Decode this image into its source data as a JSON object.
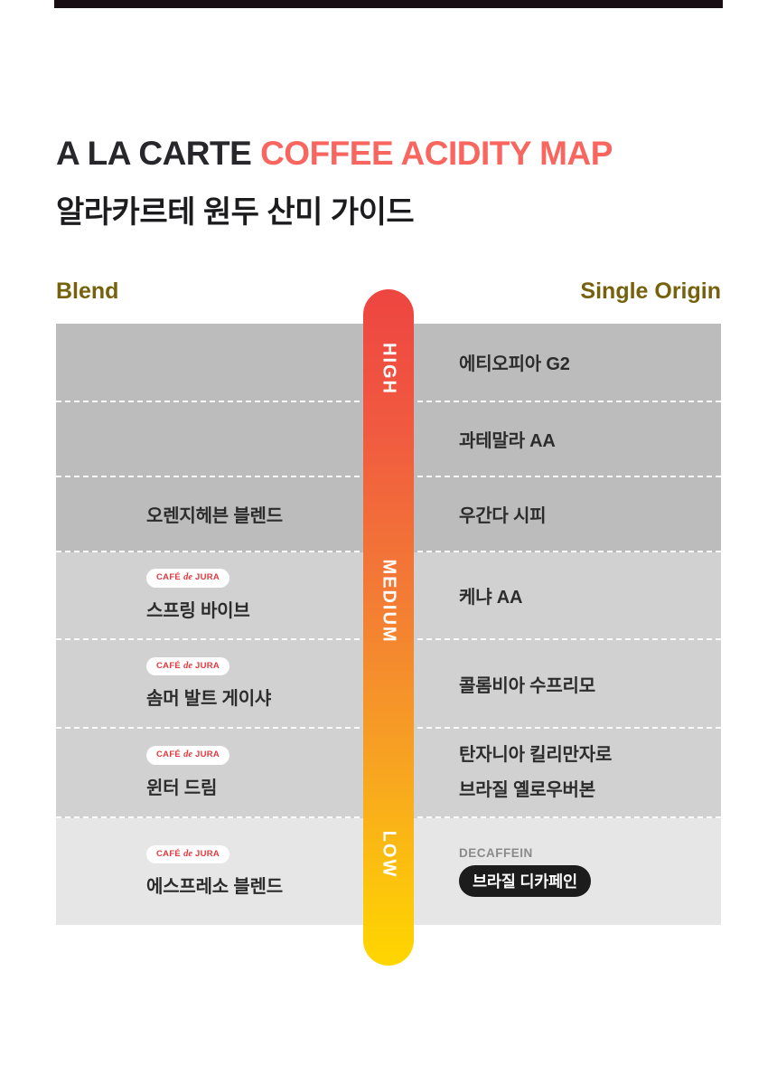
{
  "header": {
    "title_prefix": "A LA CARTE ",
    "title_highlight": "COFFEE ACIDITY MAP",
    "subtitle": "알라카르테 원두 산미 가이드",
    "highlight_color": "#f9655f",
    "title_color": "#26262b"
  },
  "columns": {
    "left_label": "Blend",
    "right_label": "Single Origin",
    "label_color": "#76610d"
  },
  "acidity_bar": {
    "labels": {
      "high": "HIGH",
      "medium": "MEDIUM",
      "low": "LOW"
    },
    "gradient_top_color": "#ee4541",
    "gradient_middle_color": "#f37b35",
    "gradient_bottom_color": "#ffd600"
  },
  "brand_badge": {
    "cafe": "CAFÉ",
    "de": "de",
    "jura": "JURA",
    "text_color": "#e03a3e",
    "background_color": "#ffffff"
  },
  "band_colors": {
    "high_rows": "#bcbcbc",
    "medium_rows": "#d1d1d1",
    "low_row": "#e6e6e6"
  },
  "top_bar_color": "#1a0e15",
  "rows": [
    {
      "acidity": "HIGH",
      "right": {
        "text": "에티오피아 G2"
      }
    },
    {
      "acidity": "HIGH",
      "right": {
        "text": "과테말라 AA"
      }
    },
    {
      "acidity": "MEDIUM",
      "left": {
        "text": "오렌지헤븐 블렌드"
      },
      "right": {
        "text": "우간다 시피"
      }
    },
    {
      "acidity": "MEDIUM",
      "left": {
        "text": "스프링 바이브"
      },
      "right": {
        "text": "케냐 AA"
      }
    },
    {
      "acidity": "MEDIUM",
      "left": {
        "text": "솜머 발트 게이샤"
      },
      "right": {
        "text": "콜롬비아 수프리모"
      }
    },
    {
      "acidity": "MEDIUM",
      "left": {
        "text": "윈터 드림"
      },
      "right": {
        "line1": "탄자니아 킬리만자로",
        "line2": "브라질 옐로우버본"
      }
    },
    {
      "acidity": "LOW",
      "left": {
        "text": "에스프레소 블렌드"
      },
      "right": {
        "label": "DECAFFEIN",
        "pill": "브라질 디카페인"
      }
    }
  ]
}
